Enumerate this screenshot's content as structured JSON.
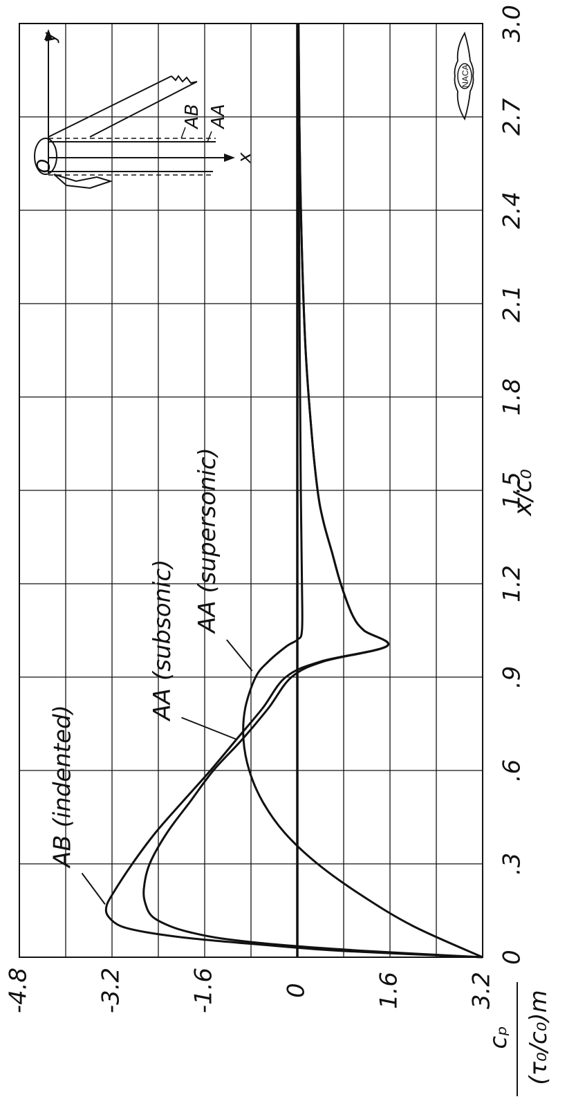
{
  "chart_data": {
    "type": "line",
    "orientation": "rotated-90",
    "grid": true,
    "xlabel": "x/c₀",
    "ylabel": "cₚ / (τ₀/c₀)m",
    "ylabel_num": "cₚ",
    "ylabel_den": "(τ₀/c₀)m",
    "xlim": [
      0,
      3.0
    ],
    "ylim": [
      -4.8,
      3.2
    ],
    "x_ticks": [
      "0",
      ".3",
      ".6",
      ".9",
      "1.2",
      "1.5",
      "1.8",
      "2.1",
      "2.4",
      "2.7",
      "3.0"
    ],
    "y_ticks": [
      "-4.8",
      "-3.2",
      "-1.6",
      "0",
      "1.6",
      "3.2"
    ],
    "series": [
      {
        "name": "AB (indented)",
        "points": [
          [
            0,
            3.2
          ],
          [
            0.02,
            0.8
          ],
          [
            0.04,
            -0.6
          ],
          [
            0.06,
            -1.8
          ],
          [
            0.08,
            -2.6
          ],
          [
            0.1,
            -3.05
          ],
          [
            0.13,
            -3.26
          ],
          [
            0.16,
            -3.3
          ],
          [
            0.2,
            -3.2
          ],
          [
            0.3,
            -2.85
          ],
          [
            0.4,
            -2.45
          ],
          [
            0.5,
            -1.98
          ],
          [
            0.6,
            -1.5
          ],
          [
            0.7,
            -1.05
          ],
          [
            0.8,
            -0.6
          ],
          [
            0.9,
            -0.2
          ],
          [
            0.95,
            0.4
          ],
          [
            1.0,
            1.55
          ],
          [
            1.05,
            1.15
          ],
          [
            1.1,
            0.95
          ],
          [
            1.2,
            0.75
          ],
          [
            1.3,
            0.6
          ],
          [
            1.4,
            0.45
          ],
          [
            1.5,
            0.35
          ],
          [
            1.7,
            0.24
          ],
          [
            2.0,
            0.13
          ],
          [
            2.5,
            0.05
          ],
          [
            3.0,
            0.02
          ]
        ]
      },
      {
        "name": "AA (subsonic)",
        "points": [
          [
            0,
            3.2
          ],
          [
            0.02,
            1.2
          ],
          [
            0.04,
            -0.3
          ],
          [
            0.06,
            -1.3
          ],
          [
            0.08,
            -1.85
          ],
          [
            0.1,
            -2.2
          ],
          [
            0.13,
            -2.5
          ],
          [
            0.17,
            -2.62
          ],
          [
            0.22,
            -2.65
          ],
          [
            0.3,
            -2.55
          ],
          [
            0.4,
            -2.25
          ],
          [
            0.5,
            -1.85
          ],
          [
            0.6,
            -1.45
          ],
          [
            0.7,
            -0.95
          ],
          [
            0.8,
            -0.5
          ],
          [
            0.9,
            -0.1
          ],
          [
            0.95,
            0.45
          ],
          [
            1.0,
            1.55
          ],
          [
            1.05,
            1.15
          ],
          [
            1.1,
            0.95
          ],
          [
            1.2,
            0.75
          ],
          [
            1.3,
            0.6
          ],
          [
            1.4,
            0.45
          ],
          [
            1.5,
            0.35
          ],
          [
            1.7,
            0.24
          ],
          [
            2.0,
            0.13
          ],
          [
            2.5,
            0.05
          ],
          [
            3.0,
            0.02
          ]
        ]
      },
      {
        "name": "AA (supersonic)",
        "points": [
          [
            0,
            3.2
          ],
          [
            0.1,
            2.0
          ],
          [
            0.2,
            1.1
          ],
          [
            0.3,
            0.35
          ],
          [
            0.4,
            -0.22
          ],
          [
            0.5,
            -0.6
          ],
          [
            0.6,
            -0.83
          ],
          [
            0.7,
            -0.93
          ],
          [
            0.8,
            -0.9
          ],
          [
            0.9,
            -0.72
          ],
          [
            0.95,
            -0.5
          ],
          [
            1.0,
            -0.18
          ],
          [
            1.02,
            0.0
          ],
          [
            1.05,
            0.08
          ],
          [
            1.2,
            0.08
          ],
          [
            1.5,
            0.06
          ],
          [
            2.0,
            0.04
          ],
          [
            3.0,
            0.01
          ]
        ]
      }
    ],
    "annotations": [
      "AB (indented)",
      "AA (subsonic)",
      "AA (supersonic)"
    ],
    "inset": {
      "labels": [
        "AB",
        "AA",
        "O",
        "x",
        "y"
      ],
      "logo": "NACA"
    }
  }
}
